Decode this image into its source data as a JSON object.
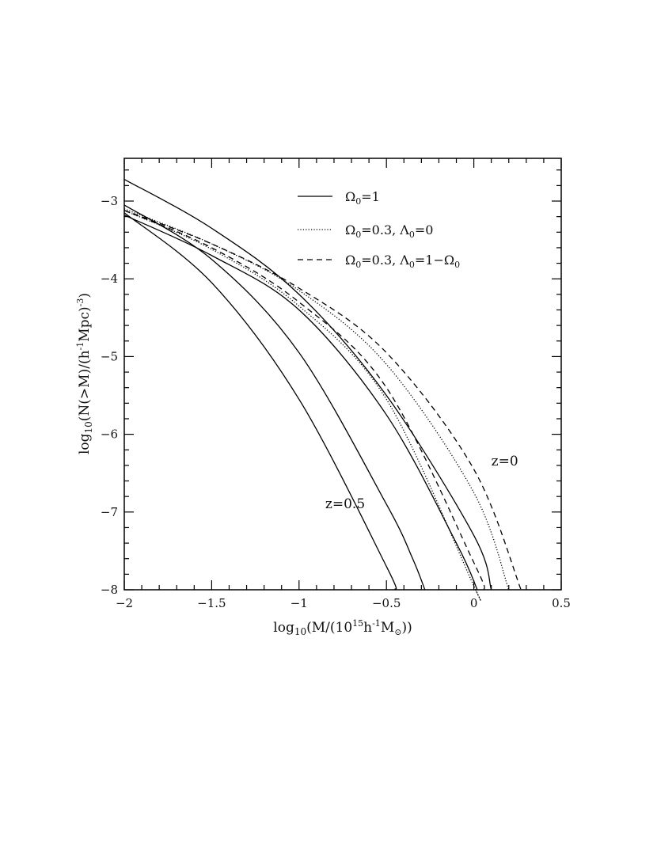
{
  "chart_data": {
    "type": "line",
    "xlabel": {
      "prefix": "log",
      "sub": "10",
      "body": "(M/(10",
      "sup": "15",
      "tail": "h",
      "sup2": "-1",
      "tail2": "M",
      "sub2": "⊙",
      "end": "))"
    },
    "ylabel": {
      "prefix": "log",
      "sub": "10",
      "body": "(N(>M)/(h",
      "sup": "-1",
      "tail": "Mpc)",
      "sup2": "-3",
      "end": ")"
    },
    "xlim": [
      -2,
      0.5
    ],
    "ylim": [
      -8,
      -2.45
    ],
    "xticks": [
      -2,
      -1.5,
      -1,
      -0.5,
      0,
      0.5
    ],
    "xtick_labels": [
      "−2",
      "−1.5",
      "−1",
      "−0.5",
      "0",
      "0.5"
    ],
    "yticks": [
      -3,
      -4,
      -5,
      -6,
      -7,
      -8
    ],
    "ytick_labels": [
      "−3",
      "−4",
      "−5",
      "−6",
      "−7",
      "−8"
    ],
    "legend": {
      "placement": "top-right",
      "entries": [
        {
          "style": "solid",
          "label": {
            "omega": "Ω",
            "sub": "0",
            "rest": "=1"
          }
        },
        {
          "style": "dotted",
          "label": {
            "omega": "Ω",
            "sub": "0",
            "rest": "=0.3,  ",
            "lambda": "Λ",
            "lsub": "0",
            "lrest": "=0"
          }
        },
        {
          "style": "dashed",
          "label": {
            "omega": "Ω",
            "sub": "0",
            "rest": "=0.3,  ",
            "lambda": "Λ",
            "lsub": "0",
            "lrest": "=1−",
            "omega2": "Ω",
            "sub2": "0"
          }
        }
      ]
    },
    "annotations": [
      {
        "text": "z=0",
        "x": 0.1,
        "y": -6.4
      },
      {
        "text": "z=0.5",
        "x": -0.85,
        "y": -6.95
      }
    ],
    "series": [
      {
        "style": "solid",
        "x": [
          -2,
          -1.5,
          -1,
          -0.5,
          0,
          0.1
        ],
        "y": [
          -2.72,
          -3.35,
          -4.2,
          -5.5,
          -7.3,
          -8.0
        ]
      },
      {
        "style": "dashed",
        "x": [
          -2,
          -1.5,
          -1,
          -0.5,
          0,
          0.27
        ],
        "y": [
          -3.12,
          -3.55,
          -4.12,
          -4.95,
          -6.45,
          -8.0
        ]
      },
      {
        "style": "dotted",
        "x": [
          -2,
          -1.5,
          -1,
          -0.5,
          0,
          0.2
        ],
        "y": [
          -3.1,
          -3.55,
          -4.15,
          -5.1,
          -6.75,
          -8.0
        ]
      },
      {
        "style": "solid",
        "x": [
          -2,
          -1.5,
          -1,
          -0.5,
          -0.35,
          -0.28
        ],
        "y": [
          -3.05,
          -3.75,
          -4.95,
          -6.9,
          -7.6,
          -8.0
        ]
      },
      {
        "style": "solid",
        "x": [
          -2,
          -1.5,
          -1,
          -0.5,
          -0.45
        ],
        "y": [
          -3.15,
          -4.05,
          -5.55,
          -7.7,
          -8.0
        ]
      },
      {
        "style": "dashed",
        "x": [
          -2,
          -1.5,
          -1,
          -0.5,
          0,
          0.06
        ],
        "y": [
          -3.12,
          -3.6,
          -4.3,
          -5.4,
          -7.65,
          -8.0
        ]
      },
      {
        "style": "dotted",
        "x": [
          -2,
          -1.5,
          -1,
          -0.5,
          0,
          0.01
        ],
        "y": [
          -3.12,
          -3.62,
          -4.35,
          -5.55,
          -7.95,
          -8.0
        ]
      },
      {
        "style": "solid",
        "x": [
          -2,
          -1.5,
          -1,
          -0.5,
          -0.1,
          0.02
        ],
        "y": [
          -3.18,
          -3.7,
          -4.4,
          -5.75,
          -7.4,
          -8.0
        ]
      }
    ]
  }
}
